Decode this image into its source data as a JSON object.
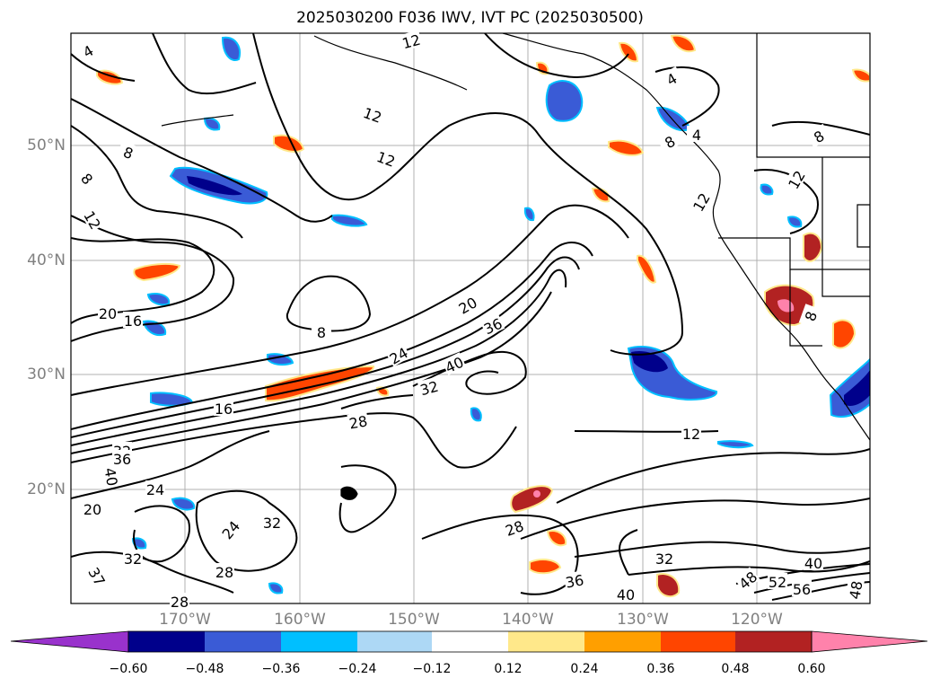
{
  "title": "2025030200 F036 IWV, IVT PC (2025030500)",
  "map": {
    "lat_labels": [
      "50°N",
      "40°N",
      "30°N",
      "20°N"
    ],
    "lon_labels": [
      "170°W",
      "160°W",
      "150°W",
      "140°W",
      "130°W",
      "120°W"
    ],
    "contour_labels": [
      {
        "t": "4"
      },
      {
        "t": "12"
      },
      {
        "t": "12"
      },
      {
        "t": "12"
      },
      {
        "t": "8"
      },
      {
        "t": "8"
      },
      {
        "t": "12"
      },
      {
        "t": "20"
      },
      {
        "t": "16"
      },
      {
        "t": "8"
      },
      {
        "t": "20"
      },
      {
        "t": "36"
      },
      {
        "t": "24"
      },
      {
        "t": "40"
      },
      {
        "t": "32"
      },
      {
        "t": "16"
      },
      {
        "t": "28"
      },
      {
        "t": "32"
      },
      {
        "t": "36"
      },
      {
        "t": "40"
      },
      {
        "t": "24"
      },
      {
        "t": "20"
      },
      {
        "t": "24"
      },
      {
        "t": "32"
      },
      {
        "t": "32"
      },
      {
        "t": "28"
      },
      {
        "t": "37"
      },
      {
        "t": "28"
      },
      {
        "t": "12"
      },
      {
        "t": "28"
      },
      {
        "t": "32"
      },
      {
        "t": "36"
      },
      {
        "t": "40"
      },
      {
        "t": "48"
      },
      {
        "t": "52"
      },
      {
        "t": "56"
      },
      {
        "t": "40"
      },
      {
        "t": "48"
      },
      {
        "t": "4"
      },
      {
        "t": "4"
      },
      {
        "t": "8"
      },
      {
        "t": "12"
      },
      {
        "t": "12"
      },
      {
        "t": "8"
      },
      {
        "t": "8"
      }
    ]
  },
  "colorbar": {
    "ticks": [
      "−0.60",
      "−0.48",
      "−0.36",
      "−0.24",
      "−0.12",
      "0.12",
      "0.24",
      "0.36",
      "0.48",
      "0.60"
    ],
    "colors": {
      "under": "#9932cc",
      "c1": "#00008b",
      "c2": "#3a5bd6",
      "c3": "#00bfff",
      "c4": "#add8f5",
      "c5": "#ffffff",
      "c6": "#ffe88a",
      "c7": "#ff9f00",
      "c8": "#ff4500",
      "c9": "#b22222",
      "over": "#ff82ab"
    }
  }
}
